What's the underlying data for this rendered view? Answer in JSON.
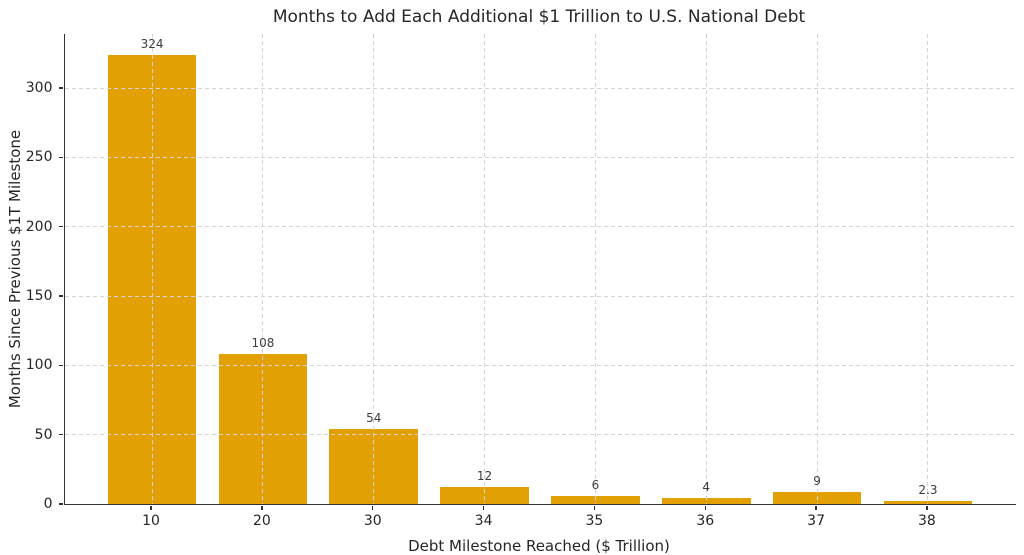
{
  "chart_data": {
    "type": "bar",
    "title": "Months to Add Each Additional $1 Trillion to U.S. National Debt",
    "xlabel": "Debt Milestone Reached ($ Trillion)",
    "ylabel": "Months Since Previous $1T Milestone",
    "categories": [
      "10",
      "20",
      "30",
      "34",
      "35",
      "36",
      "37",
      "38"
    ],
    "values": [
      324,
      108,
      54,
      12,
      6,
      4,
      9,
      2.3
    ],
    "bar_labels": [
      "324",
      "108",
      "54",
      "12",
      "6",
      "4",
      "9",
      "2.3"
    ],
    "yticks": [
      0,
      50,
      100,
      150,
      200,
      250,
      300
    ],
    "ylim": [
      0,
      339
    ],
    "xlim_pad": 0.79,
    "bar_width_ratio": 0.8,
    "grid": true,
    "grid_style": "dashed",
    "legend_position": "none",
    "colors": {
      "bar": "#E2A005",
      "grid": "#D4D4D4",
      "spine": "#333333",
      "text": "#262626",
      "bar_label_text": "#3D3D3D",
      "background": "#FFFFFF"
    }
  }
}
